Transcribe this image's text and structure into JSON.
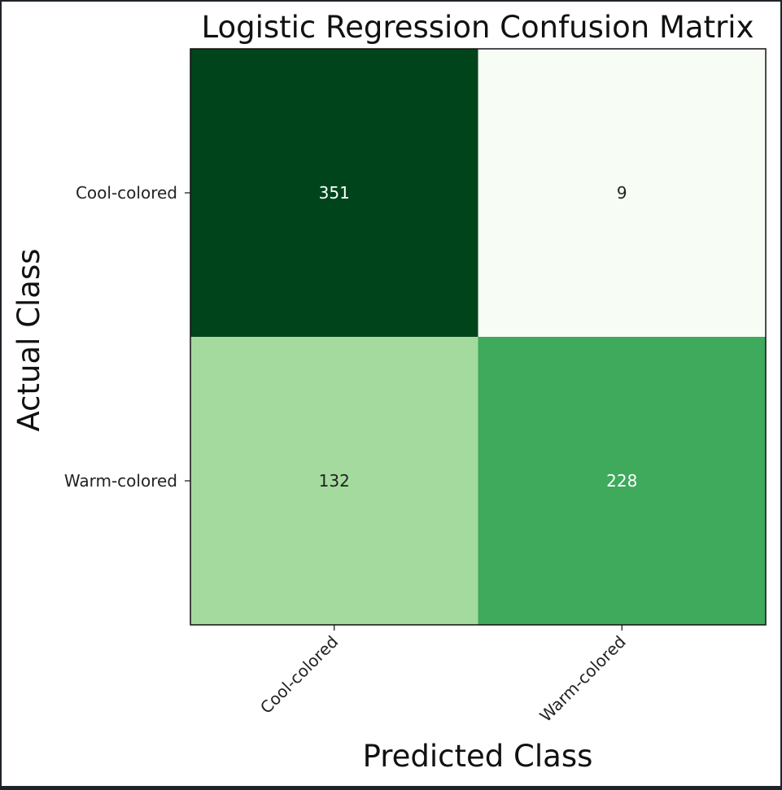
{
  "chart_data": {
    "type": "heatmap",
    "title": "Logistic Regression Confusion Matrix",
    "xlabel": "Predicted Class",
    "ylabel": "Actual Class",
    "x_categories": [
      "Cool-colored",
      "Warm-colored"
    ],
    "y_categories": [
      "Cool-colored",
      "Warm-colored"
    ],
    "values": [
      [
        351,
        9
      ],
      [
        132,
        228
      ]
    ],
    "colormap": "Greens",
    "cell_colors": [
      [
        "#00441b",
        "#f7fcf5"
      ],
      [
        "#a4da9e",
        "#3fa95c"
      ]
    ],
    "text_colors": [
      [
        "#ffffff",
        "#222222"
      ],
      [
        "#222222",
        "#ffffff"
      ]
    ],
    "grid": false,
    "legend": "none"
  }
}
